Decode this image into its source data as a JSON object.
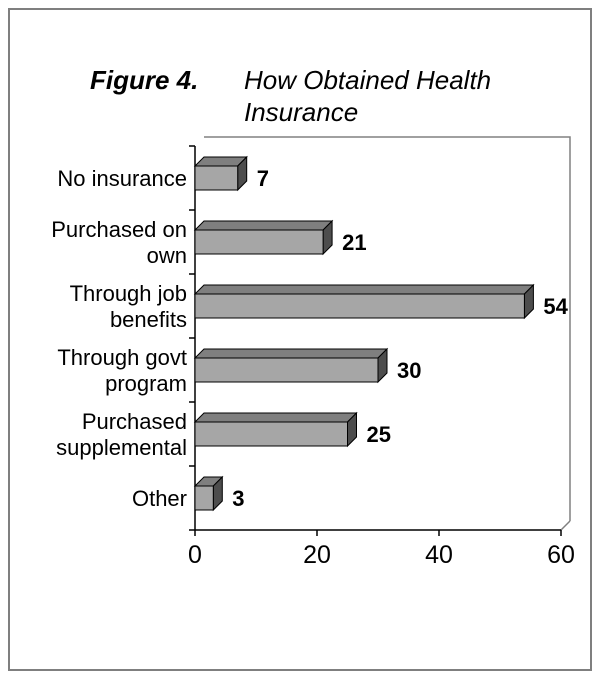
{
  "chart_data": {
    "type": "bar",
    "orientation": "horizontal",
    "title_lead": "Figure 4.",
    "title_lines": [
      "How Obtained Health",
      "Insurance"
    ],
    "categories": [
      [
        "No insurance"
      ],
      [
        "Purchased on",
        "own"
      ],
      [
        "Through job",
        "benefits"
      ],
      [
        "Through govt",
        "program"
      ],
      [
        "Purchased",
        "supplemental"
      ],
      [
        "Other"
      ]
    ],
    "values": [
      7,
      21,
      54,
      30,
      25,
      3
    ],
    "data_labels": [
      "7",
      "21",
      "54",
      "30",
      "25",
      "3"
    ],
    "xlim": [
      0,
      60
    ],
    "xticks": [
      0,
      20,
      40,
      60
    ],
    "xtick_labels": [
      "0",
      "20",
      "40",
      "60"
    ],
    "grid": false,
    "colors": {
      "bar_front": "#a6a6a6",
      "bar_top": "#7f7f7f",
      "bar_side": "#4d4d4d",
      "axis": "#000000",
      "wall": "#808080",
      "frame": "#7f7f7f"
    }
  }
}
